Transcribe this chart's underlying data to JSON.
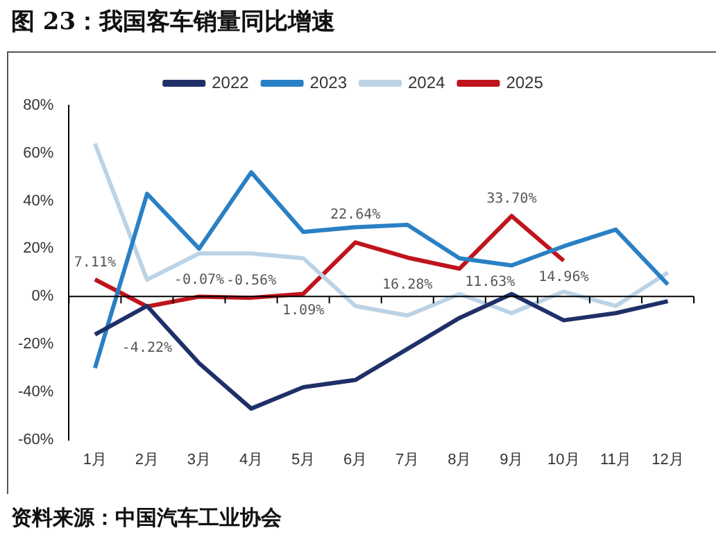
{
  "chart_data": {
    "type": "line",
    "title": "图 23：我国客车销量同比增速",
    "annotations": [
      "资料来源：中国汽车工业协会"
    ],
    "categories": [
      "1月",
      "2月",
      "3月",
      "4月",
      "5月",
      "6月",
      "7月",
      "8月",
      "9月",
      "10月",
      "11月",
      "12月"
    ],
    "series": [
      {
        "name": "2022",
        "color": "#1f3068",
        "values": [
          -16,
          -4,
          -28,
          -47,
          -38,
          -35,
          -22,
          -9,
          1,
          -10,
          -7,
          -2
        ]
      },
      {
        "name": "2023",
        "color": "#2a80c4",
        "values": [
          -30,
          43,
          20,
          52,
          27,
          29,
          30,
          16,
          13,
          21,
          28,
          5
        ]
      },
      {
        "name": "2024",
        "color": "#bcd3e6",
        "values": [
          64,
          7,
          18,
          18,
          16,
          -4,
          -8,
          1,
          -7,
          2,
          -4,
          10
        ]
      },
      {
        "name": "2025",
        "color": "#c0141c",
        "values": [
          7.11,
          -4.22,
          -0.07,
          -0.56,
          1.09,
          22.64,
          16.28,
          11.63,
          33.7,
          14.96,
          null,
          null
        ],
        "value_labels": [
          "7.11%",
          "-4.22%",
          "-0.07%",
          "-0.56%",
          "1.09%",
          "22.64%",
          "16.28%",
          "11.63%",
          "33.70%",
          "14.96%",
          null,
          null
        ]
      }
    ],
    "ylim": [
      -60,
      80
    ],
    "yticks": [
      {
        "value": -60,
        "label": "-60%"
      },
      {
        "value": -40,
        "label": "-40%"
      },
      {
        "value": -20,
        "label": "-20%"
      },
      {
        "value": 0,
        "label": "0%"
      },
      {
        "value": 20,
        "label": "20%"
      },
      {
        "value": 40,
        "label": "40%"
      },
      {
        "value": 60,
        "label": "60%"
      },
      {
        "value": 80,
        "label": "80%"
      }
    ],
    "ref_lines": [
      {
        "axis": "y",
        "value": 0,
        "color": "#000000"
      }
    ],
    "grid": false,
    "legend": "top",
    "marker": "none",
    "line_style": "solid"
  }
}
